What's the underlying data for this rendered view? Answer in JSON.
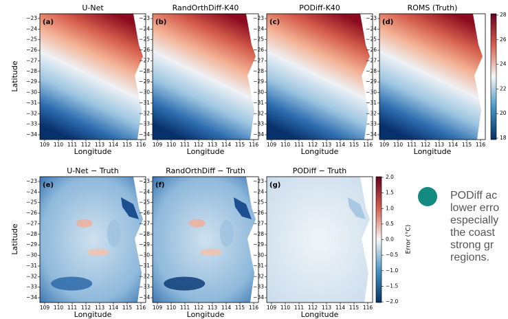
{
  "figure": {
    "top_panels": [
      {
        "title": "U-Net",
        "letter": "(a)"
      },
      {
        "title": "RandOrthDiff-K40",
        "letter": "(b)"
      },
      {
        "title": "PODiff-K40",
        "letter": "(c)"
      },
      {
        "title": "ROMS (Truth)",
        "letter": "(d)"
      }
    ],
    "bottom_panels": [
      {
        "title": "U-Net − Truth",
        "letter": "(e)"
      },
      {
        "title": "RandOrthDiff − Truth",
        "letter": "(f)"
      },
      {
        "title": "PODiff − Truth",
        "letter": "(g)"
      }
    ],
    "lat_ticks": [
      "−23",
      "−24",
      "−25",
      "−26",
      "−27",
      "−28",
      "−29",
      "−30",
      "−31",
      "−32",
      "−33",
      "−34"
    ],
    "lon_ticks": [
      "109",
      "110",
      "111",
      "112",
      "113",
      "114",
      "115",
      "116"
    ],
    "y_label": "Latitude",
    "x_label": "Longitude",
    "temp_ticks": [
      "28",
      "26",
      "24",
      "22",
      "20",
      "18"
    ],
    "error_ticks": [
      "2.0",
      "1.5",
      "1.0",
      "0.5",
      "0.0",
      "−0.5",
      "−1.0",
      "−1.5",
      "−2.0"
    ],
    "error_label": "Error (°C)"
  },
  "bullet": {
    "lines": [
      "PODiff ac",
      "lower erro",
      "especially",
      "the coast",
      "strong gr",
      "regions."
    ]
  }
}
